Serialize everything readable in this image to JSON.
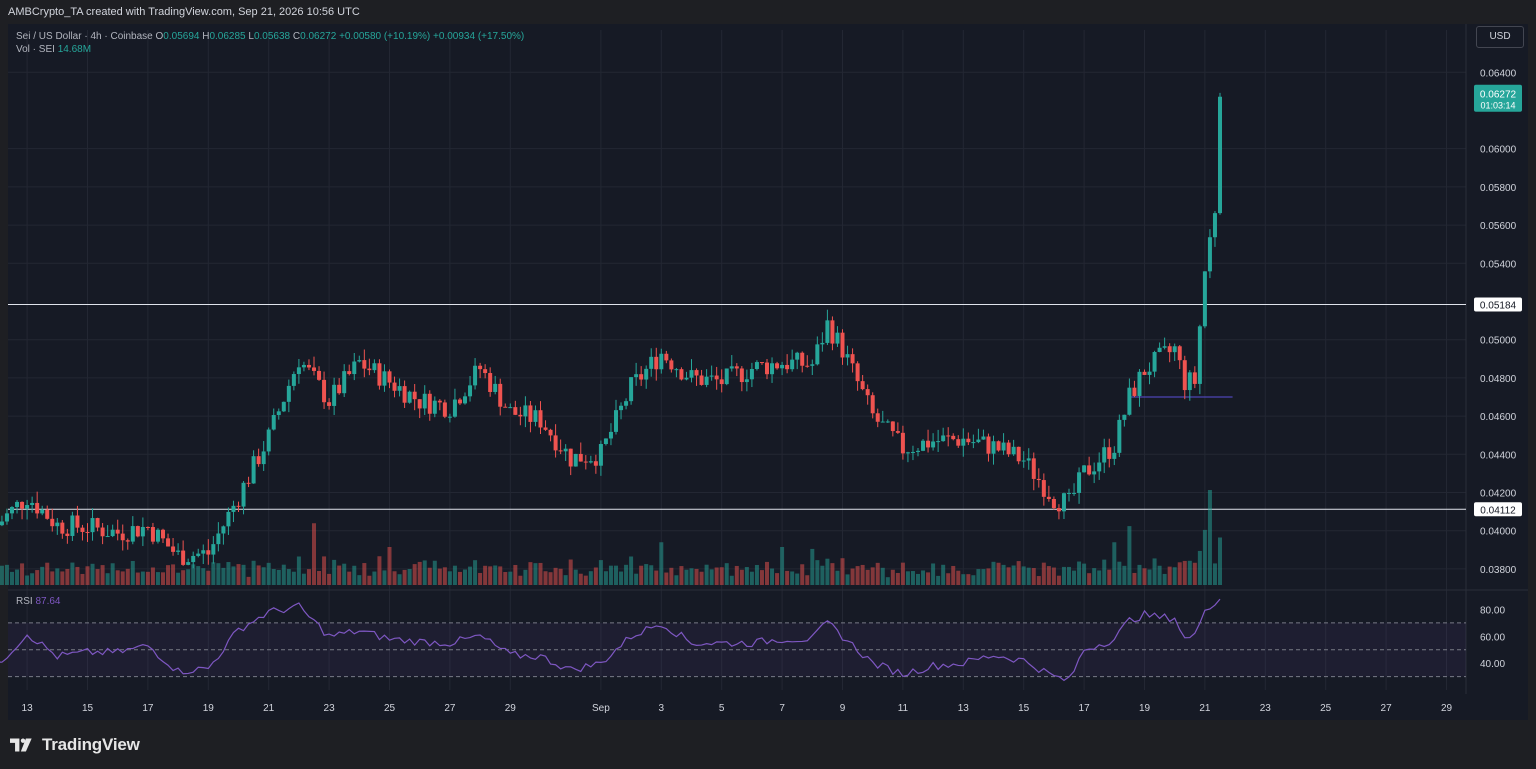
{
  "header": {
    "attribution": "AMBCrypto_TA created with TradingView.com, Sep 21, 2026 10:56 UTC"
  },
  "legend": {
    "symbol": "Sei / US Dollar · 4h · Coinbase",
    "ohlc": [
      {
        "label": "O",
        "value": "0.05694"
      },
      {
        "label": "H",
        "value": "0.06285"
      },
      {
        "label": "L",
        "value": "0.05638"
      },
      {
        "label": "C",
        "value": "0.06272"
      }
    ],
    "change": "+0.00580 (+10.19%)",
    "change2": "+0.00934 (+17.50%)",
    "volume_label": "Vol · SEI",
    "volume_value": "14.68M",
    "rsi_label": "RSI",
    "rsi_value": "87.64"
  },
  "currency_button": "USD",
  "price_tag": {
    "price": "0.06272",
    "countdown": "01:03:14"
  },
  "branding": {
    "name": "TradingView"
  },
  "colors": {
    "up": "#26a69a",
    "down": "#ef5350",
    "rsi": "#7e57c2",
    "bg": "#161a25"
  },
  "chart_data": [
    {
      "type": "candlestick",
      "title": "Sei / US Dollar · 4h · Coinbase",
      "ylim": [
        0.037,
        0.0648
      ],
      "y_ticks": [
        "0.06400",
        "0.06000",
        "0.05800",
        "0.05600",
        "0.05400",
        "0.05000",
        "0.04800",
        "0.04600",
        "0.04400",
        "0.04200",
        "0.04000",
        "0.03800"
      ],
      "x_ticks": [
        "13",
        "15",
        "17",
        "19",
        "21",
        "23",
        "25",
        "27",
        "29",
        "Sep",
        "3",
        "5",
        "7",
        "9",
        "11",
        "13",
        "15",
        "17",
        "19",
        "21",
        "23",
        "25",
        "27",
        "29"
      ],
      "horizontal_lines": [
        {
          "value": 0.05184,
          "label": "0.05184"
        },
        {
          "value": 0.04112,
          "label": "0.04112"
        }
      ],
      "short_level": {
        "value": 0.047
      },
      "last_price": 0.06272,
      "anchors": [
        {
          "date": "Aug 12",
          "close": 0.0403
        },
        {
          "date": "Aug 13",
          "close": 0.0418
        },
        {
          "date": "Aug 14",
          "close": 0.0403
        },
        {
          "date": "Aug 15",
          "close": 0.0402
        },
        {
          "date": "Aug 16",
          "close": 0.0399
        },
        {
          "date": "Aug 17",
          "close": 0.0402
        },
        {
          "date": "Aug 18",
          "close": 0.0387
        },
        {
          "date": "Aug 19",
          "close": 0.0388
        },
        {
          "date": "Aug 20",
          "close": 0.0418
        },
        {
          "date": "Aug 21",
          "close": 0.0449
        },
        {
          "date": "Aug 22",
          "close": 0.049
        },
        {
          "date": "Aug 23",
          "close": 0.0468
        },
        {
          "date": "Aug 24",
          "close": 0.0488
        },
        {
          "date": "Aug 25",
          "close": 0.0478
        },
        {
          "date": "Aug 26",
          "close": 0.0468
        },
        {
          "date": "Aug 27",
          "close": 0.0465
        },
        {
          "date": "Aug 28",
          "close": 0.0485
        },
        {
          "date": "Aug 29",
          "close": 0.0462
        },
        {
          "date": "Aug 30",
          "close": 0.0458
        },
        {
          "date": "Aug 31",
          "close": 0.0438
        },
        {
          "date": "Sep 1",
          "close": 0.044
        },
        {
          "date": "Sep 2",
          "close": 0.0475
        },
        {
          "date": "Sep 3",
          "close": 0.0493
        },
        {
          "date": "Sep 4",
          "close": 0.048
        },
        {
          "date": "Sep 5",
          "close": 0.0478
        },
        {
          "date": "Sep 6",
          "close": 0.0485
        },
        {
          "date": "Sep 7",
          "close": 0.0488
        },
        {
          "date": "Sep 8",
          "close": 0.0487
        },
        {
          "date": "Sep 8 12:00",
          "close": 0.0508
        },
        {
          "date": "Sep 9",
          "close": 0.0495
        },
        {
          "date": "Sep 10",
          "close": 0.046
        },
        {
          "date": "Sep 11",
          "close": 0.0443
        },
        {
          "date": "Sep 12",
          "close": 0.0447
        },
        {
          "date": "Sep 13",
          "close": 0.0448
        },
        {
          "date": "Sep 14",
          "close": 0.0444
        },
        {
          "date": "Sep 15",
          "close": 0.0437
        },
        {
          "date": "Sep 16",
          "close": 0.0417
        },
        {
          "date": "Sep 16 12:00",
          "close": 0.0414
        },
        {
          "date": "Sep 17",
          "close": 0.043
        },
        {
          "date": "Sep 18",
          "close": 0.0445
        },
        {
          "date": "Sep 18 12:00",
          "close": 0.047
        },
        {
          "date": "Sep 19",
          "close": 0.0484
        },
        {
          "date": "Sep 19 12:00",
          "close": 0.049
        },
        {
          "date": "Sep 20",
          "close": 0.0495
        },
        {
          "date": "Sep 20 08:00",
          "close": 0.0478
        },
        {
          "date": "Sep 20 16:00",
          "close": 0.0478
        },
        {
          "date": "Sep 21",
          "close": 0.0536
        },
        {
          "date": "Sep 21 08:00",
          "close": 0.0569
        },
        {
          "date": "Sep 21 12:00",
          "close": 0.06272
        }
      ]
    },
    {
      "type": "bar",
      "title": "Vol · SEI",
      "last_value": "14.68M",
      "relative_levels": [
        {
          "date": "Aug 13",
          "value": 0.1
        },
        {
          "date": "Aug 20",
          "value": 0.22
        },
        {
          "date": "Aug 22",
          "value": 0.3
        },
        {
          "date": "Aug 22 12:00",
          "value": 0.65
        },
        {
          "date": "Aug 25",
          "value": 0.4
        },
        {
          "date": "Sep 2",
          "value": 0.3
        },
        {
          "date": "Sep 3",
          "value": 0.45
        },
        {
          "date": "Sep 7",
          "value": 0.4
        },
        {
          "date": "Sep 8",
          "value": 0.38
        },
        {
          "date": "Sep 18",
          "value": 0.45
        },
        {
          "date": "Sep 18 12:00",
          "value": 0.62
        },
        {
          "date": "Sep 21",
          "value": 0.58
        },
        {
          "date": "Sep 21 04:00",
          "value": 1.0
        },
        {
          "date": "Sep 21 12:00",
          "value": 0.5
        }
      ]
    },
    {
      "type": "line",
      "title": "RSI",
      "last_value": 87.64,
      "y_ticks": [
        "80.00",
        "60.00",
        "40.00"
      ],
      "bands": [
        70,
        50,
        30
      ],
      "anchors": [
        {
          "date": "Aug 12",
          "value": 38
        },
        {
          "date": "Aug 13",
          "value": 62
        },
        {
          "date": "Aug 14",
          "value": 45
        },
        {
          "date": "Aug 15",
          "value": 48
        },
        {
          "date": "Aug 16",
          "value": 48
        },
        {
          "date": "Aug 17",
          "value": 53
        },
        {
          "date": "Aug 18",
          "value": 34
        },
        {
          "date": "Aug 19",
          "value": 36
        },
        {
          "date": "Aug 20",
          "value": 65
        },
        {
          "date": "Aug 21",
          "value": 78
        },
        {
          "date": "Aug 22",
          "value": 82
        },
        {
          "date": "Aug 23",
          "value": 60
        },
        {
          "date": "Aug 24",
          "value": 64
        },
        {
          "date": "Aug 25",
          "value": 58
        },
        {
          "date": "Aug 26",
          "value": 56
        },
        {
          "date": "Aug 27",
          "value": 55
        },
        {
          "date": "Aug 28",
          "value": 60
        },
        {
          "date": "Aug 29",
          "value": 46
        },
        {
          "date": "Aug 30",
          "value": 45
        },
        {
          "date": "Aug 31",
          "value": 35
        },
        {
          "date": "Sep 1",
          "value": 40
        },
        {
          "date": "Sep 2",
          "value": 60
        },
        {
          "date": "Sep 3",
          "value": 70
        },
        {
          "date": "Sep 4",
          "value": 55
        },
        {
          "date": "Sep 5",
          "value": 55
        },
        {
          "date": "Sep 6",
          "value": 55
        },
        {
          "date": "Sep 7",
          "value": 58
        },
        {
          "date": "Sep 8",
          "value": 58
        },
        {
          "date": "Sep 8 12:00",
          "value": 70
        },
        {
          "date": "Sep 9",
          "value": 60
        },
        {
          "date": "Sep 10",
          "value": 40
        },
        {
          "date": "Sep 11",
          "value": 32
        },
        {
          "date": "Sep 12",
          "value": 38
        },
        {
          "date": "Sep 13",
          "value": 40
        },
        {
          "date": "Sep 14",
          "value": 46
        },
        {
          "date": "Sep 15",
          "value": 42
        },
        {
          "date": "Sep 16",
          "value": 30
        },
        {
          "date": "Sep 16 12:00",
          "value": 27
        },
        {
          "date": "Sep 17",
          "value": 50
        },
        {
          "date": "Sep 18",
          "value": 58
        },
        {
          "date": "Sep 18 12:00",
          "value": 72
        },
        {
          "date": "Sep 19",
          "value": 76
        },
        {
          "date": "Sep 19 12:00",
          "value": 74
        },
        {
          "date": "Sep 20",
          "value": 74
        },
        {
          "date": "Sep 20 08:00",
          "value": 58
        },
        {
          "date": "Sep 20 16:00",
          "value": 60
        },
        {
          "date": "Sep 21",
          "value": 82
        },
        {
          "date": "Sep 21 08:00",
          "value": 84
        },
        {
          "date": "Sep 21 12:00",
          "value": 87.64
        }
      ]
    }
  ]
}
